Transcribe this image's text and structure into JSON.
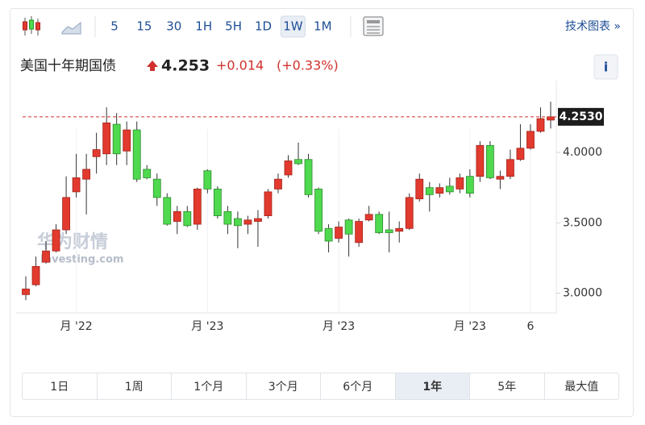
{
  "toolbar": {
    "intervals": [
      "5",
      "15",
      "30",
      "1H",
      "5H",
      "1D",
      "1W",
      "1M"
    ],
    "active_interval": "1W",
    "link": "技术图表 »"
  },
  "header": {
    "title": "美国十年期国债",
    "price": "4.253",
    "change": "+0.014",
    "change_pct": "(+0.33%)",
    "info": "i"
  },
  "watermark": {
    "brand": "华为财情",
    "site": "Investing.com"
  },
  "range_buttons": {
    "labels": [
      "1日",
      "1周",
      "1个月",
      "3个月",
      "6个月",
      "1年",
      "5年",
      "最大值"
    ],
    "active": "1年"
  },
  "chart_data": {
    "type": "candlestick",
    "categories": [
      null,
      null,
      null,
      null,
      null,
      "月 '22",
      null,
      null,
      null,
      null,
      null,
      null,
      null,
      null,
      null,
      null,
      null,
      null,
      "月 '23",
      null,
      null,
      null,
      null,
      null,
      null,
      null,
      null,
      null,
      null,
      null,
      null,
      "月 '23",
      null,
      null,
      null,
      null,
      null,
      null,
      null,
      null,
      null,
      null,
      null,
      null,
      "月 '23",
      null,
      null,
      null,
      null,
      null,
      "6",
      null,
      null
    ],
    "open": [
      2.99,
      3.06,
      3.22,
      3.3,
      3.45,
      3.72,
      3.81,
      3.97,
      3.99,
      4.2,
      4.01,
      4.16,
      3.88,
      3.81,
      3.68,
      3.51,
      3.58,
      3.49,
      3.87,
      3.74,
      3.58,
      3.53,
      3.49,
      3.51,
      3.55,
      3.74,
      3.84,
      3.95,
      3.95,
      3.74,
      3.46,
      3.39,
      3.52,
      3.36,
      3.52,
      3.56,
      3.45,
      3.44,
      3.46,
      3.67,
      3.75,
      3.71,
      3.76,
      3.74,
      3.83,
      3.83,
      4.05,
      3.81,
      3.83,
      3.95,
      4.03,
      4.15,
      4.23
    ],
    "high": [
      3.12,
      3.26,
      3.37,
      3.49,
      3.83,
      3.99,
      3.99,
      4.14,
      4.32,
      4.28,
      4.22,
      4.22,
      3.91,
      3.85,
      3.71,
      3.62,
      3.62,
      3.75,
      3.88,
      3.76,
      3.62,
      3.58,
      3.55,
      3.59,
      3.74,
      3.85,
      3.98,
      4.07,
      3.99,
      3.75,
      3.49,
      3.51,
      3.53,
      3.53,
      3.62,
      3.58,
      3.58,
      3.51,
      3.71,
      3.85,
      3.79,
      3.78,
      3.82,
      3.85,
      3.88,
      4.08,
      4.08,
      3.87,
      4.02,
      4.2,
      4.2,
      4.32,
      4.36
    ],
    "low": [
      2.95,
      3.05,
      3.21,
      3.29,
      3.42,
      3.68,
      3.56,
      3.85,
      3.91,
      3.91,
      3.91,
      3.79,
      3.81,
      3.62,
      3.48,
      3.42,
      3.47,
      3.45,
      3.71,
      3.53,
      3.42,
      3.32,
      3.42,
      3.33,
      3.53,
      3.71,
      3.82,
      3.91,
      3.68,
      3.42,
      3.29,
      3.36,
      3.26,
      3.33,
      3.51,
      3.42,
      3.29,
      3.36,
      3.45,
      3.65,
      3.58,
      3.68,
      3.7,
      3.71,
      3.68,
      3.79,
      3.81,
      3.74,
      3.81,
      3.94,
      4.02,
      4.14,
      4.17
    ],
    "close": [
      3.03,
      3.19,
      3.3,
      3.45,
      3.68,
      3.82,
      3.88,
      4.02,
      4.21,
      3.99,
      4.16,
      3.81,
      3.82,
      3.68,
      3.49,
      3.58,
      3.48,
      3.74,
      3.74,
      3.55,
      3.49,
      3.48,
      3.52,
      3.53,
      3.72,
      3.81,
      3.94,
      3.92,
      3.7,
      3.44,
      3.37,
      3.47,
      3.42,
      3.51,
      3.56,
      3.43,
      3.43,
      3.46,
      3.68,
      3.81,
      3.7,
      3.75,
      3.72,
      3.82,
      3.71,
      4.05,
      3.82,
      3.83,
      3.95,
      4.03,
      4.15,
      4.24,
      4.253
    ],
    "up_color": "#e23a2e",
    "down_color": "#4fd94f",
    "ylim": [
      2.86,
      4.51
    ],
    "yticks": [
      {
        "value": 3,
        "label": "3.0000"
      },
      {
        "value": 3.5,
        "label": "3.5000"
      },
      {
        "value": 4,
        "label": "4.0000"
      }
    ],
    "last_price": {
      "value": 4.253,
      "label": "4.2530"
    },
    "grid": false
  }
}
